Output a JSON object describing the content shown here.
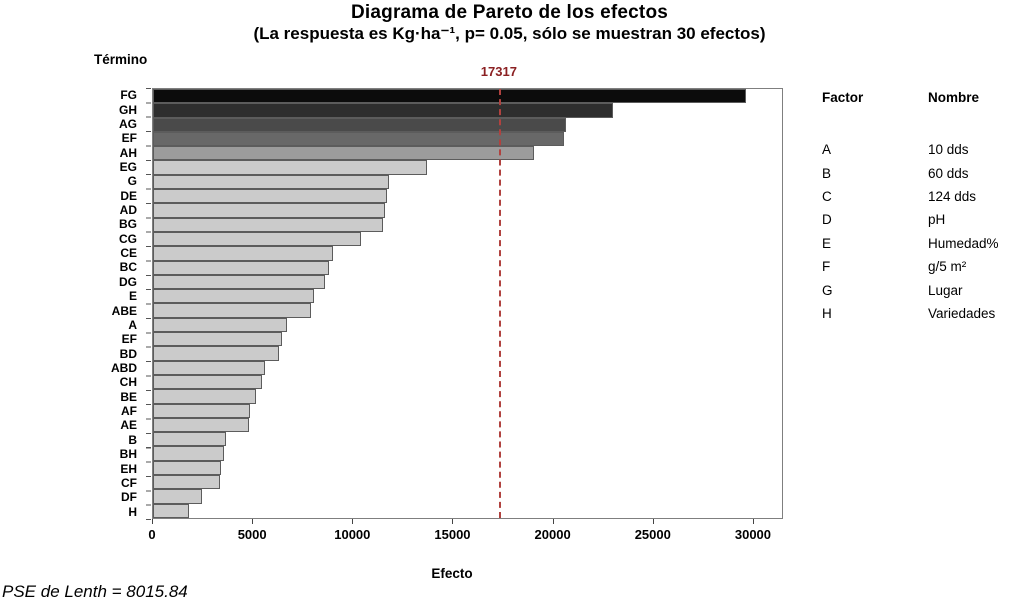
{
  "title": "Diagrama de Pareto de los efectos",
  "subtitle": "(La respuesta es Kg·ha⁻¹, p= 0.05, sólo se muestran 30 efectos)",
  "y_axis_title": "Término",
  "footer_note": "PSE de Lenth = 8015.84",
  "legend": {
    "header": {
      "factor": "Factor",
      "nombre": "Nombre"
    },
    "rows": [
      {
        "factor": "A",
        "nombre": "10 dds"
      },
      {
        "factor": "B",
        "nombre": "60 dds"
      },
      {
        "factor": "C",
        "nombre": "124 dds"
      },
      {
        "factor": "D",
        "nombre": "pH"
      },
      {
        "factor": "E",
        "nombre": "Humedad%"
      },
      {
        "factor": "F",
        "nombre": "g/5 m²"
      },
      {
        "factor": "G",
        "nombre": "Lugar"
      },
      {
        "factor": "H",
        "nombre": "Variedades"
      }
    ]
  },
  "colors": {
    "reference_line": "#b0423f",
    "reference_label": "#8b2022",
    "frame": "#7f7f7f",
    "bar_border": "#5c5c5c"
  },
  "chart_data": {
    "type": "bar",
    "orientation": "horizontal",
    "title": "Diagrama de Pareto de los efectos",
    "xlabel": "Efecto",
    "ylabel": "Término",
    "xlim": [
      0,
      31500
    ],
    "xticks": [
      0,
      5000,
      10000,
      15000,
      20000,
      25000,
      30000
    ],
    "grid": false,
    "reference_line": {
      "value": 17317,
      "label": "17317"
    },
    "categories": [
      "FG",
      "GH",
      "AG",
      "EF",
      "AH",
      "EG",
      "G",
      "DE",
      "AD",
      "BG",
      "CG",
      "CE",
      "BC",
      "DG",
      "E",
      "ABE",
      "A",
      "EF",
      "BD",
      "ABD",
      "CH",
      "BE",
      "AF",
      "AE",
      "B",
      "BH",
      "EH",
      "CF",
      "DF",
      "H"
    ],
    "values": [
      29700,
      23050,
      20700,
      20600,
      19100,
      13700,
      11800,
      11700,
      11600,
      11500,
      10400,
      9000,
      8800,
      8600,
      8050,
      7900,
      6700,
      6450,
      6300,
      5600,
      5450,
      5150,
      4850,
      4800,
      3650,
      3550,
      3400,
      3350,
      2450,
      1800
    ],
    "bar_colors": [
      "#0c0c0c",
      "#2e2e2e",
      "#4a4a4a",
      "#686868",
      "#9c9c9c",
      "#cbcbcb",
      "#cbcbcb",
      "#cbcbcb",
      "#cbcbcb",
      "#cbcbcb",
      "#cbcbcb",
      "#cbcbcb",
      "#cbcbcb",
      "#cbcbcb",
      "#cbcbcb",
      "#cbcbcb",
      "#cbcbcb",
      "#cbcbcb",
      "#cbcbcb",
      "#cbcbcb",
      "#cbcbcb",
      "#cbcbcb",
      "#cbcbcb",
      "#cbcbcb",
      "#cbcbcb",
      "#cbcbcb",
      "#cbcbcb",
      "#cbcbcb",
      "#cbcbcb",
      "#cbcbcb"
    ]
  }
}
